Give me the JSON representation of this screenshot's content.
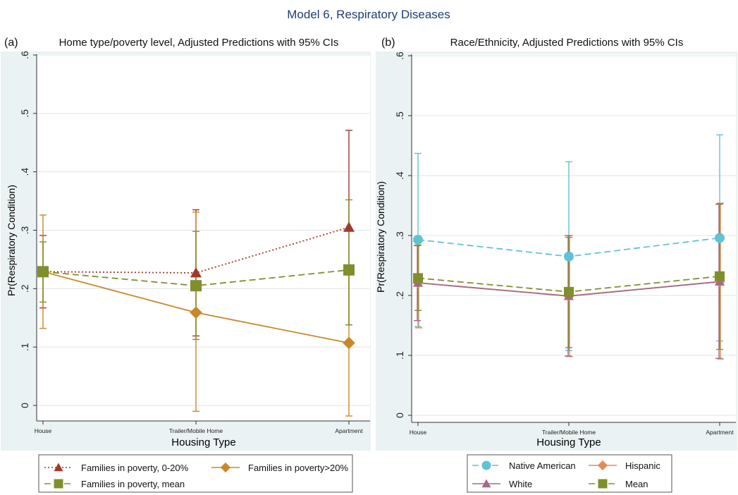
{
  "figure_title": "Model 6, Respiratory Diseases",
  "colors": {
    "bg": "#eaf2f3",
    "grid": "#dfe5e8",
    "poverty_low": "#a3372c",
    "poverty_high": "#c8882a",
    "mean": "#7f8f2c",
    "native": "#5fc3d6",
    "hispanic": "#e08b5a",
    "white": "#a56a8a",
    "title": "#1d3f73"
  },
  "chart_data": [
    {
      "panel": "(a)",
      "type": "line",
      "title": "Home type/poverty level, Adjusted Predictions with 95% CIs",
      "xlabel": "Housing Type",
      "ylabel": "Pr(Respiratory Condition)",
      "categories": [
        "House",
        "Trailer/Mobile Home",
        "Apartment"
      ],
      "ylim": [
        0,
        0.6
      ],
      "yticks": [
        0,
        0.1,
        0.2,
        0.3,
        0.4,
        0.5,
        0.6
      ],
      "ytick_labels": [
        "0",
        ".1",
        ".2",
        ".3",
        ".4",
        ".5",
        ".6"
      ],
      "grid": true,
      "legend_position": "bottom",
      "legend_columns": 2,
      "series": [
        {
          "name": "Families in poverty, 0-20%",
          "color": "#a3372c",
          "marker": "triangle",
          "line": "dotted",
          "values": [
            0.229,
            0.227,
            0.305
          ],
          "lower": [
            0.167,
            0.119,
            0.138
          ],
          "upper": [
            0.291,
            0.335,
            0.471
          ]
        },
        {
          "name": "Families in poverty>20%",
          "color": "#c8882a",
          "marker": "diamond",
          "line": "solid",
          "values": [
            0.229,
            0.159,
            0.107
          ],
          "lower": [
            0.132,
            -0.01,
            -0.018
          ],
          "upper": [
            0.326,
            0.331,
            0.23
          ]
        },
        {
          "name": "Families in poverty, mean",
          "color": "#7f8f2c",
          "marker": "square",
          "line": "dashed",
          "values": [
            0.229,
            0.205,
            0.232
          ],
          "lower": [
            0.177,
            0.113,
            0.138
          ],
          "upper": [
            0.28,
            0.298,
            0.352
          ]
        }
      ]
    },
    {
      "panel": "(b)",
      "type": "line",
      "title": "Race/Ethnicity, Adjusted Predictions with 95% CIs",
      "xlabel": "Housing Type",
      "ylabel": "Pr(Respiratory Condition)",
      "categories": [
        "House",
        "Trailer/Mobile Home",
        "Apartment"
      ],
      "ylim": [
        0,
        0.6
      ],
      "yticks": [
        0,
        0.1,
        0.2,
        0.3,
        0.4,
        0.5,
        0.6
      ],
      "ytick_labels": [
        "0",
        ".1",
        ".2",
        ".3",
        ".4",
        ".5",
        ".6"
      ],
      "grid": true,
      "legend_position": "bottom",
      "legend_columns": 2,
      "series": [
        {
          "name": "Native American",
          "color": "#5fc3d6",
          "marker": "circle",
          "line": "dashed",
          "values": [
            0.293,
            0.265,
            0.296
          ],
          "lower": [
            0.148,
            0.108,
            0.124
          ],
          "upper": [
            0.437,
            0.423,
            0.468
          ]
        },
        {
          "name": "Hispanic",
          "color": "#e08b5a",
          "marker": "diamond",
          "line": "solid",
          "values": [
            0.221,
            0.199,
            0.223
          ],
          "lower": [
            0.146,
            0.098,
            0.094
          ],
          "upper": [
            0.296,
            0.3,
            0.354
          ]
        },
        {
          "name": "White",
          "color": "#a56a8a",
          "marker": "triangle",
          "line": "solid",
          "values": [
            0.221,
            0.199,
            0.223
          ],
          "lower": [
            0.158,
            0.099,
            0.095
          ],
          "upper": [
            0.283,
            0.3,
            0.352
          ]
        },
        {
          "name": "Mean",
          "color": "#7f8f2c",
          "marker": "square",
          "line": "dashed",
          "values": [
            0.229,
            0.206,
            0.232
          ],
          "lower": [
            0.175,
            0.113,
            0.11
          ],
          "upper": [
            0.284,
            0.297,
            0.353
          ]
        }
      ]
    }
  ]
}
